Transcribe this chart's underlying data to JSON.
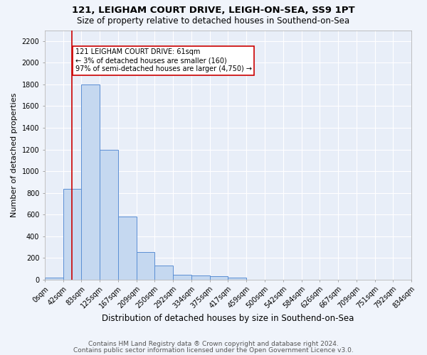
{
  "title1": "121, LEIGHAM COURT DRIVE, LEIGH-ON-SEA, SS9 1PT",
  "title2": "Size of property relative to detached houses in Southend-on-Sea",
  "xlabel": "Distribution of detached houses by size in Southend-on-Sea",
  "ylabel": "Number of detached properties",
  "bin_labels": [
    "0sqm",
    "42sqm",
    "83sqm",
    "125sqm",
    "167sqm",
    "209sqm",
    "250sqm",
    "292sqm",
    "334sqm",
    "375sqm",
    "417sqm",
    "459sqm",
    "500sqm",
    "542sqm",
    "584sqm",
    "626sqm",
    "667sqm",
    "709sqm",
    "751sqm",
    "792sqm",
    "834sqm"
  ],
  "bin_edges": [
    0,
    42,
    83,
    125,
    167,
    209,
    250,
    292,
    334,
    375,
    417,
    459,
    500,
    542,
    584,
    626,
    667,
    709,
    751,
    792,
    834
  ],
  "bar_heights": [
    20,
    840,
    1800,
    1200,
    585,
    255,
    130,
    45,
    40,
    30,
    20,
    0,
    0,
    0,
    0,
    0,
    0,
    0,
    0,
    0
  ],
  "bar_color": "#c5d8f0",
  "bar_edge_color": "#5b8fd4",
  "property_line_x": 61,
  "property_line_color": "#cc0000",
  "annotation_text": "121 LEIGHAM COURT DRIVE: 61sqm\n← 3% of detached houses are smaller (160)\n97% of semi-detached houses are larger (4,750) →",
  "annotation_box_color": "#ffffff",
  "annotation_box_edge_color": "#cc0000",
  "ylim": [
    0,
    2300
  ],
  "yticks": [
    0,
    200,
    400,
    600,
    800,
    1000,
    1200,
    1400,
    1600,
    1800,
    2000,
    2200
  ],
  "footer1": "Contains HM Land Registry data ® Crown copyright and database right 2024.",
  "footer2": "Contains public sector information licensed under the Open Government Licence v3.0.",
  "bg_color": "#f0f4fb",
  "plot_bg_color": "#e8eef8",
  "grid_color": "#ffffff",
  "title1_fontsize": 9.5,
  "title2_fontsize": 8.5,
  "xlabel_fontsize": 8.5,
  "ylabel_fontsize": 8,
  "tick_fontsize": 7,
  "footer_fontsize": 6.5
}
